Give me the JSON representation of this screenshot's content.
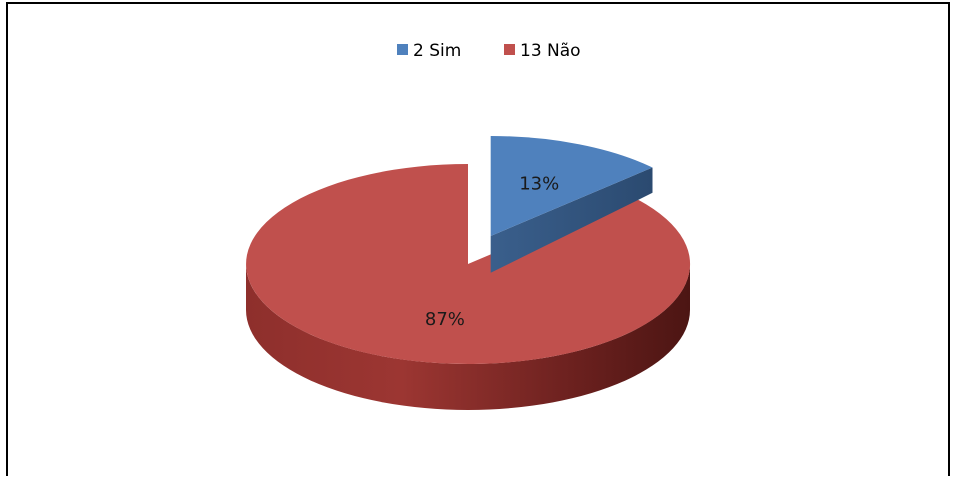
{
  "chart_data": {
    "type": "pie",
    "style": "3d-exploded",
    "categories": [
      "2 Sim",
      "13 Não"
    ],
    "values": [
      13,
      87
    ],
    "data_labels": [
      "13%",
      "87%"
    ],
    "colors": [
      "#4f81bd",
      "#c0504d"
    ],
    "legend_position": "top"
  }
}
